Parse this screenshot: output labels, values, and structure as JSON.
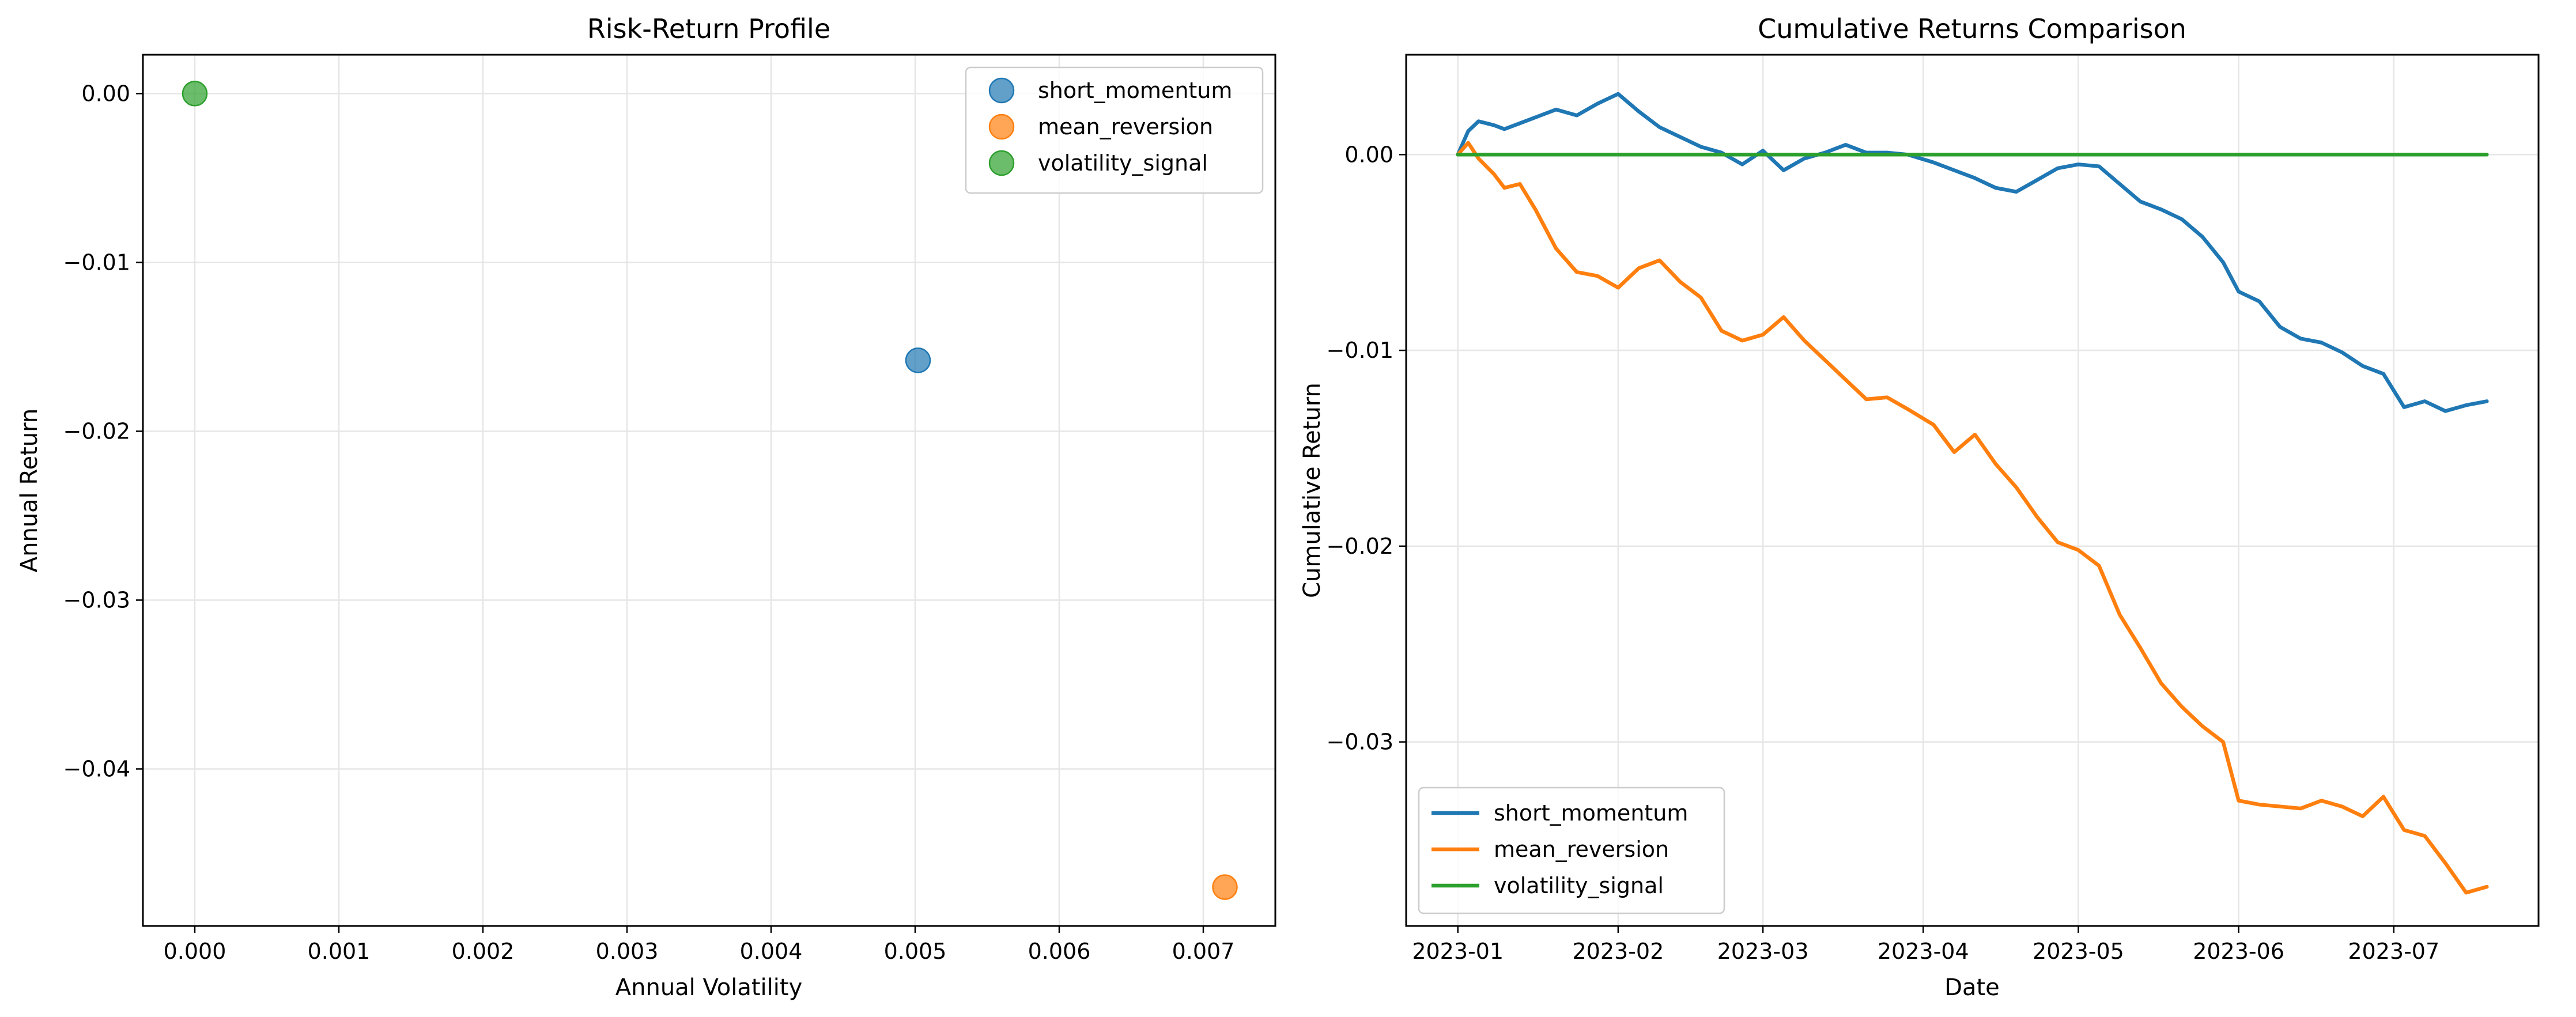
{
  "chart_data": [
    {
      "type": "scatter",
      "title": "Risk-Return Profile",
      "xlabel": "Annual Volatility",
      "ylabel": "Annual Return",
      "xlim": [
        -0.00036,
        0.0075
      ],
      "ylim": [
        -0.0493,
        0.0023
      ],
      "xticks": [
        0.0,
        0.001,
        0.002,
        0.003,
        0.004,
        0.005,
        0.006,
        0.007
      ],
      "xtick_labels": [
        "0.000",
        "0.001",
        "0.002",
        "0.003",
        "0.004",
        "0.005",
        "0.006",
        "0.007"
      ],
      "yticks": [
        0.0,
        -0.01,
        -0.02,
        -0.03,
        -0.04
      ],
      "ytick_labels": [
        "0.00",
        "−0.01",
        "−0.02",
        "−0.03",
        "−0.04"
      ],
      "grid": true,
      "legend_position": "top-right",
      "series": [
        {
          "name": "short_momentum",
          "color": "#1f77b4",
          "x": [
            0.00502
          ],
          "y": [
            -0.0158
          ]
        },
        {
          "name": "mean_reversion",
          "color": "#ff7f0e",
          "x": [
            0.00715
          ],
          "y": [
            -0.047
          ]
        },
        {
          "name": "volatility_signal",
          "color": "#2ca02c",
          "x": [
            0.0
          ],
          "y": [
            0.0
          ]
        }
      ]
    },
    {
      "type": "line",
      "title": "Cumulative Returns Comparison",
      "xlabel": "Date",
      "ylabel": "Cumulative Return",
      "x_type": "date",
      "xlim": [
        "2022-12-22",
        "2023-07-29"
      ],
      "ylim": [
        -0.0394,
        0.0051
      ],
      "xticks": [
        "2023-01-01",
        "2023-02-01",
        "2023-03-01",
        "2023-04-01",
        "2023-05-01",
        "2023-06-01",
        "2023-07-01"
      ],
      "xtick_labels": [
        "2023-01",
        "2023-02",
        "2023-03",
        "2023-04",
        "2023-05",
        "2023-06",
        "2023-07"
      ],
      "yticks": [
        0.0,
        -0.01,
        -0.02,
        -0.03
      ],
      "ytick_labels": [
        "0.00",
        "−0.01",
        "−0.02",
        "−0.03"
      ],
      "grid": true,
      "legend_position": "bottom-left",
      "x": [
        "2023-01-01",
        "2023-01-03",
        "2023-01-05",
        "2023-01-08",
        "2023-01-10",
        "2023-01-13",
        "2023-01-16",
        "2023-01-20",
        "2023-01-24",
        "2023-01-28",
        "2023-02-01",
        "2023-02-05",
        "2023-02-09",
        "2023-02-13",
        "2023-02-17",
        "2023-02-21",
        "2023-02-25",
        "2023-03-01",
        "2023-03-05",
        "2023-03-09",
        "2023-03-13",
        "2023-03-17",
        "2023-03-21",
        "2023-03-25",
        "2023-03-29",
        "2023-04-03",
        "2023-04-07",
        "2023-04-11",
        "2023-04-15",
        "2023-04-19",
        "2023-04-23",
        "2023-04-27",
        "2023-05-01",
        "2023-05-05",
        "2023-05-09",
        "2023-05-13",
        "2023-05-17",
        "2023-05-21",
        "2023-05-25",
        "2023-05-29",
        "2023-06-01",
        "2023-06-05",
        "2023-06-09",
        "2023-06-13",
        "2023-06-17",
        "2023-06-21",
        "2023-06-25",
        "2023-06-29",
        "2023-07-03",
        "2023-07-07",
        "2023-07-11",
        "2023-07-15",
        "2023-07-19"
      ],
      "series": [
        {
          "name": "short_momentum",
          "color": "#1f77b4",
          "values": [
            0.0,
            0.0012,
            0.0017,
            0.0015,
            0.0013,
            0.0016,
            0.0019,
            0.0023,
            0.002,
            0.0026,
            0.0031,
            0.0022,
            0.0014,
            0.0009,
            0.0004,
            0.0001,
            -0.0005,
            0.0002,
            -0.0008,
            -0.0002,
            0.0001,
            0.0005,
            0.0001,
            0.0001,
            0.0,
            -0.0004,
            -0.0008,
            -0.0012,
            -0.0017,
            -0.0019,
            -0.0013,
            -0.0007,
            -0.0005,
            -0.0006,
            -0.0015,
            -0.0024,
            -0.0028,
            -0.0033,
            -0.0042,
            -0.0055,
            -0.007,
            -0.0075,
            -0.0088,
            -0.0094,
            -0.0096,
            -0.0101,
            -0.0108,
            -0.0112,
            -0.0129,
            -0.0126,
            -0.0131,
            -0.0128,
            -0.0126
          ]
        },
        {
          "name": "mean_reversion",
          "color": "#ff7f0e",
          "values": [
            0.0,
            0.0006,
            -0.0002,
            -0.001,
            -0.0017,
            -0.0015,
            -0.0028,
            -0.0048,
            -0.006,
            -0.0062,
            -0.0068,
            -0.0058,
            -0.0054,
            -0.0065,
            -0.0073,
            -0.009,
            -0.0095,
            -0.0092,
            -0.0083,
            -0.0095,
            -0.0105,
            -0.0115,
            -0.0125,
            -0.0124,
            -0.013,
            -0.0138,
            -0.0152,
            -0.0143,
            -0.0158,
            -0.017,
            -0.0185,
            -0.0198,
            -0.0202,
            -0.021,
            -0.0235,
            -0.0252,
            -0.027,
            -0.0282,
            -0.0292,
            -0.03,
            -0.033,
            -0.0332,
            -0.0333,
            -0.0334,
            -0.033,
            -0.0333,
            -0.0338,
            -0.0328,
            -0.0345,
            -0.0348,
            -0.0362,
            -0.0377,
            -0.0374
          ]
        },
        {
          "name": "volatility_signal",
          "color": "#2ca02c",
          "values": [
            0.0,
            0.0,
            0.0,
            0.0,
            0.0,
            0.0,
            0.0,
            0.0,
            0.0,
            0.0,
            0.0,
            0.0,
            0.0,
            0.0,
            0.0,
            0.0,
            0.0,
            0.0,
            0.0,
            0.0,
            0.0,
            0.0,
            0.0,
            0.0,
            0.0,
            0.0,
            0.0,
            0.0,
            0.0,
            0.0,
            0.0,
            0.0,
            0.0,
            0.0,
            0.0,
            0.0,
            0.0,
            0.0,
            0.0,
            0.0,
            0.0,
            0.0,
            0.0,
            0.0,
            0.0,
            0.0,
            0.0,
            0.0,
            0.0,
            0.0,
            0.0,
            0.0,
            0.0
          ]
        }
      ]
    }
  ]
}
